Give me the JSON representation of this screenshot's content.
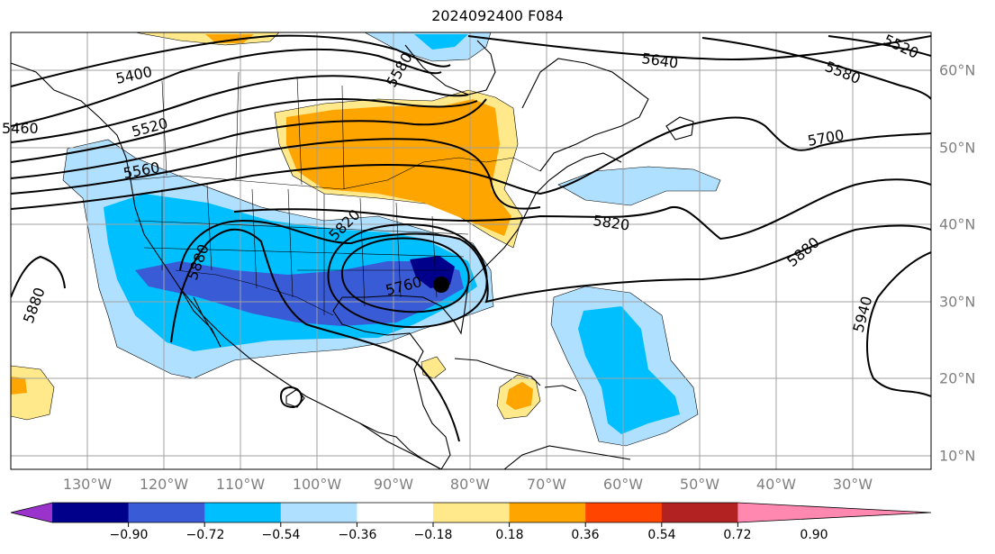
{
  "title": "2024092400 F084",
  "map": {
    "region": "north-america-atlantic",
    "features": [
      "coastlines",
      "country-borders",
      "state-borders",
      "lat-lon-grid"
    ],
    "storm_marker": {
      "lat": 32.2,
      "lon": -84.8
    }
  },
  "longitude_labels": [
    "130°W",
    "120°W",
    "110°W",
    "100°W",
    "90°W",
    "80°W",
    "70°W",
    "60°W",
    "50°W",
    "40°W",
    "30°W"
  ],
  "latitude_labels": [
    "60°N",
    "50°N",
    "40°N",
    "30°N",
    "20°N",
    "10°N"
  ],
  "contour_labels": [
    "5400",
    "5460",
    "5520",
    "5560",
    "5580",
    "5640",
    "5580",
    "5520",
    "5700",
    "5820",
    "5820",
    "5880",
    "5880",
    "5880",
    "5940",
    "5760"
  ],
  "colorbar": {
    "tick_labels": [
      "−0.90",
      "−0.72",
      "−0.54",
      "−0.36",
      "−0.18",
      "0.18",
      "0.36",
      "0.54",
      "0.72",
      "0.90"
    ],
    "colors": [
      "#9933cc",
      "#00008b",
      "#3a5bd6",
      "#00bfff",
      "#b0e0ff",
      "#ffffff",
      "#ffe98a",
      "#ffa500",
      "#ff4500",
      "#b22222",
      "#ff88b0"
    ]
  }
}
